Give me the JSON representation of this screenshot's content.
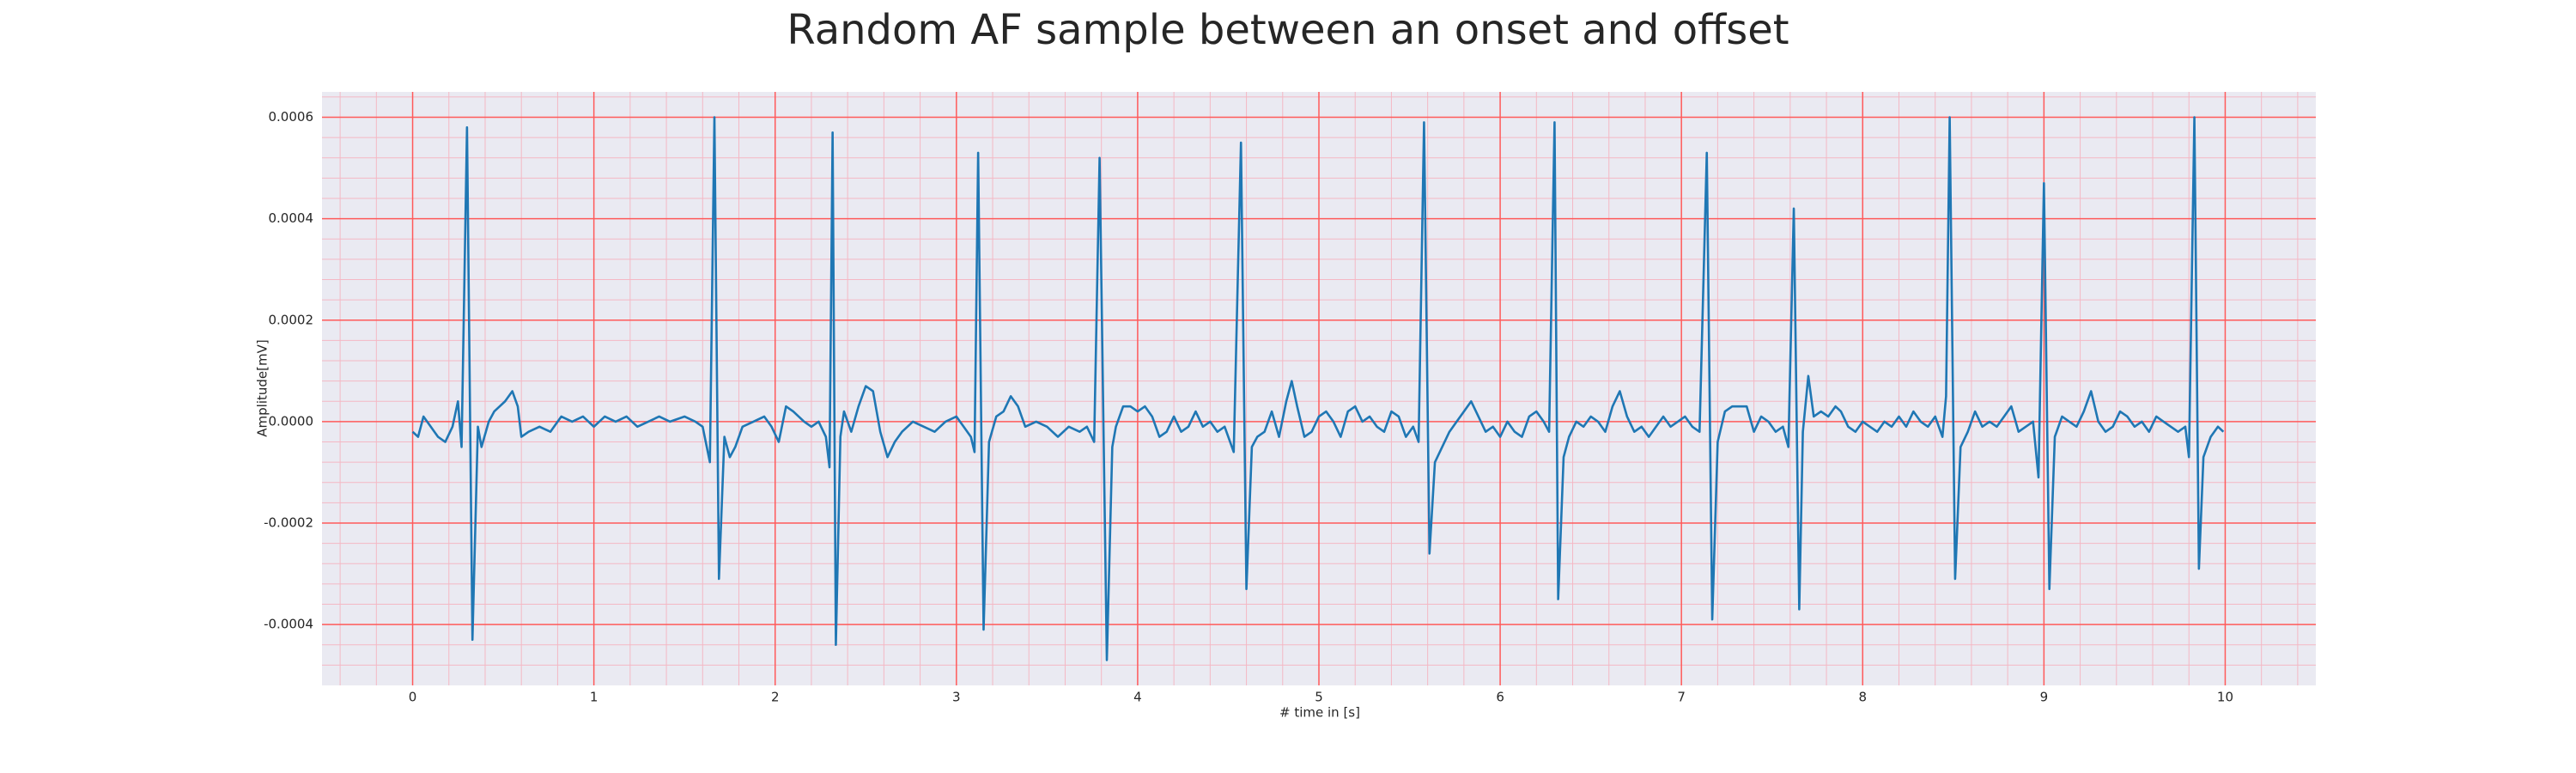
{
  "chart_data": {
    "type": "line",
    "title": "Random AF sample between an onset and offset",
    "x_label": "# time in [s]",
    "y_label": "Amplitude[mV]",
    "color": "#1f77b4",
    "grid": true,
    "minor_grid": true,
    "xlim": [
      -0.5,
      10.5
    ],
    "ylim": [
      -0.00052,
      0.00065
    ],
    "xticks": [
      0,
      1,
      2,
      3,
      4,
      5,
      6,
      7,
      8,
      9,
      10
    ],
    "yticks": [
      -0.0004,
      -0.0002,
      {
        "value": 0,
        "label": "0.0000"
      },
      0.0002,
      0.0004,
      0.0006
    ],
    "minor_xticks": [
      -0.4,
      -0.2,
      0.2,
      0.4,
      0.6,
      0.8,
      1.2,
      1.4,
      1.6,
      1.8,
      2.2,
      2.4,
      2.6,
      2.8,
      3.2,
      3.4,
      3.6,
      3.8,
      4.2,
      4.4,
      4.6,
      4.8,
      5.2,
      5.4,
      5.6,
      5.8,
      6.2,
      6.4,
      6.6,
      6.8,
      7.2,
      7.4,
      7.6,
      7.8,
      8.2,
      8.4,
      8.6,
      8.8,
      9.2,
      9.4,
      9.6,
      9.8,
      10.2,
      10.4
    ],
    "minor_yticks": [
      -0.00048,
      -0.00044,
      -0.00036,
      -0.00032,
      -0.00028,
      -0.00024,
      -0.00016,
      -0.00012,
      -8e-05,
      -4e-05,
      4e-05,
      8e-05,
      0.00012,
      0.00016,
      0.00024,
      0.00028,
      0.00032,
      0.00036,
      0.00044,
      0.00048,
      0.00052,
      0.00056,
      0.00064
    ],
    "x": [
      0,
      0.03,
      0.06,
      0.1,
      0.14,
      0.18,
      0.22,
      0.25,
      0.27,
      0.3,
      0.33,
      0.36,
      0.38,
      0.42,
      0.45,
      0.48,
      0.51,
      0.55,
      0.58,
      0.6,
      0.64,
      0.7,
      0.76,
      0.82,
      0.88,
      0.94,
      1,
      1.06,
      1.12,
      1.18,
      1.24,
      1.3,
      1.36,
      1.42,
      1.5,
      1.56,
      1.6,
      1.64,
      1.665,
      1.69,
      1.72,
      1.75,
      1.78,
      1.82,
      1.88,
      1.94,
      1.98,
      2.02,
      2.06,
      2.1,
      2.16,
      2.2,
      2.24,
      2.28,
      2.3,
      2.317,
      2.335,
      2.36,
      2.38,
      2.42,
      2.46,
      2.5,
      2.54,
      2.58,
      2.62,
      2.66,
      2.7,
      2.76,
      2.82,
      2.88,
      2.94,
      3,
      3.04,
      3.08,
      3.1,
      3.12,
      3.15,
      3.18,
      3.22,
      3.26,
      3.3,
      3.34,
      3.38,
      3.44,
      3.5,
      3.56,
      3.62,
      3.68,
      3.72,
      3.76,
      3.79,
      3.83,
      3.86,
      3.88,
      3.92,
      3.96,
      4,
      4.04,
      4.08,
      4.12,
      4.16,
      4.2,
      4.24,
      4.28,
      4.32,
      4.36,
      4.4,
      4.44,
      4.48,
      4.53,
      4.57,
      4.6,
      4.63,
      4.66,
      4.7,
      4.74,
      4.78,
      4.82,
      4.85,
      4.88,
      4.92,
      4.96,
      5,
      5.04,
      5.08,
      5.12,
      5.16,
      5.2,
      5.24,
      5.28,
      5.32,
      5.36,
      5.4,
      5.44,
      5.48,
      5.52,
      5.55,
      5.58,
      5.61,
      5.64,
      5.68,
      5.72,
      5.76,
      5.8,
      5.84,
      5.88,
      5.92,
      5.96,
      6,
      6.04,
      6.08,
      6.12,
      6.16,
      6.2,
      6.24,
      6.27,
      6.3,
      6.32,
      6.35,
      6.38,
      6.42,
      6.46,
      6.5,
      6.54,
      6.58,
      6.62,
      6.66,
      6.7,
      6.74,
      6.78,
      6.82,
      6.86,
      6.9,
      6.94,
      6.98,
      7.02,
      7.06,
      7.1,
      7.14,
      7.17,
      7.2,
      7.24,
      7.28,
      7.32,
      7.36,
      7.4,
      7.44,
      7.48,
      7.52,
      7.56,
      7.59,
      7.62,
      7.65,
      7.67,
      7.7,
      7.73,
      7.77,
      7.81,
      7.85,
      7.88,
      7.92,
      7.96,
      8,
      8.04,
      8.08,
      8.12,
      8.16,
      8.2,
      8.24,
      8.28,
      8.32,
      8.36,
      8.4,
      8.44,
      8.46,
      8.48,
      8.51,
      8.54,
      8.58,
      8.62,
      8.66,
      8.7,
      8.74,
      8.78,
      8.82,
      8.86,
      8.9,
      8.94,
      8.97,
      9,
      9.03,
      9.06,
      9.1,
      9.14,
      9.18,
      9.22,
      9.26,
      9.3,
      9.34,
      9.38,
      9.42,
      9.46,
      9.5,
      9.54,
      9.58,
      9.62,
      9.66,
      9.7,
      9.74,
      9.78,
      9.8,
      9.83,
      9.855,
      9.88,
      9.92,
      9.96,
      9.99
    ],
    "values": [
      -2e-05,
      -3e-05,
      1e-05,
      -1e-05,
      -3e-05,
      -4e-05,
      -1e-05,
      4e-05,
      -5e-05,
      0.00058,
      -0.00043,
      -1e-05,
      -5e-05,
      0,
      2e-05,
      3e-05,
      4e-05,
      6e-05,
      3e-05,
      -3e-05,
      -2e-05,
      -1e-05,
      -2e-05,
      1e-05,
      0,
      1e-05,
      -1e-05,
      1e-05,
      0,
      1e-05,
      -1e-05,
      0,
      1e-05,
      0,
      1e-05,
      0,
      -1e-05,
      -8e-05,
      0.0006,
      -0.00031,
      -3e-05,
      -7e-05,
      -5e-05,
      -1e-05,
      0,
      1e-05,
      -1e-05,
      -4e-05,
      3e-05,
      2e-05,
      0,
      -1e-05,
      0,
      -3e-05,
      -9e-05,
      0.00057,
      -0.00044,
      -3e-05,
      2e-05,
      -2e-05,
      3e-05,
      7e-05,
      6e-05,
      -2e-05,
      -7e-05,
      -4e-05,
      -2e-05,
      0,
      -1e-05,
      -2e-05,
      0,
      1e-05,
      -1e-05,
      -3e-05,
      -6e-05,
      0.00053,
      -0.00041,
      -4e-05,
      1e-05,
      2e-05,
      5e-05,
      3e-05,
      -1e-05,
      0,
      -1e-05,
      -3e-05,
      -1e-05,
      -2e-05,
      -1e-05,
      -4e-05,
      0.00052,
      -0.00047,
      -5e-05,
      -1e-05,
      3e-05,
      3e-05,
      2e-05,
      3e-05,
      1e-05,
      -3e-05,
      -2e-05,
      1e-05,
      -2e-05,
      -1e-05,
      2e-05,
      -1e-05,
      0,
      -2e-05,
      -1e-05,
      -6e-05,
      0.00055,
      -0.00033,
      -5e-05,
      -3e-05,
      -2e-05,
      2e-05,
      -3e-05,
      4e-05,
      8e-05,
      3e-05,
      -3e-05,
      -2e-05,
      1e-05,
      2e-05,
      0,
      -3e-05,
      2e-05,
      3e-05,
      0,
      1e-05,
      -1e-05,
      -2e-05,
      2e-05,
      1e-05,
      -3e-05,
      -1e-05,
      -4e-05,
      0.00059,
      -0.00026,
      -8e-05,
      -5e-05,
      -2e-05,
      0,
      2e-05,
      4e-05,
      1e-05,
      -2e-05,
      -1e-05,
      -3e-05,
      0,
      -2e-05,
      -3e-05,
      1e-05,
      2e-05,
      0,
      -2e-05,
      0.00059,
      -0.00035,
      -7e-05,
      -3e-05,
      0,
      -1e-05,
      1e-05,
      0,
      -2e-05,
      3e-05,
      6e-05,
      1e-05,
      -2e-05,
      -1e-05,
      -3e-05,
      -1e-05,
      1e-05,
      -1e-05,
      0,
      1e-05,
      -1e-05,
      -2e-05,
      0.00053,
      -0.00039,
      -4e-05,
      2e-05,
      3e-05,
      3e-05,
      3e-05,
      -2e-05,
      1e-05,
      0,
      -2e-05,
      -1e-05,
      -5e-05,
      0.00042,
      -0.00037,
      -2e-05,
      9e-05,
      1e-05,
      2e-05,
      1e-05,
      3e-05,
      2e-05,
      -1e-05,
      -2e-05,
      0,
      -1e-05,
      -2e-05,
      0,
      -1e-05,
      1e-05,
      -1e-05,
      2e-05,
      0,
      -1e-05,
      1e-05,
      -3e-05,
      5e-05,
      0.0006,
      -0.00031,
      -5e-05,
      -2e-05,
      2e-05,
      -1e-05,
      0,
      -1e-05,
      1e-05,
      3e-05,
      -2e-05,
      -1e-05,
      0,
      -0.00011,
      0.00047,
      -0.00033,
      -3e-05,
      1e-05,
      0,
      -1e-05,
      2e-05,
      6e-05,
      0,
      -2e-05,
      -1e-05,
      2e-05,
      1e-05,
      -1e-05,
      0,
      -2e-05,
      1e-05,
      0,
      -1e-05,
      -2e-05,
      -1e-05,
      -7e-05,
      0.0006,
      -0.00029,
      -7e-05,
      -3e-05,
      -1e-05,
      -2e-05
    ]
  }
}
